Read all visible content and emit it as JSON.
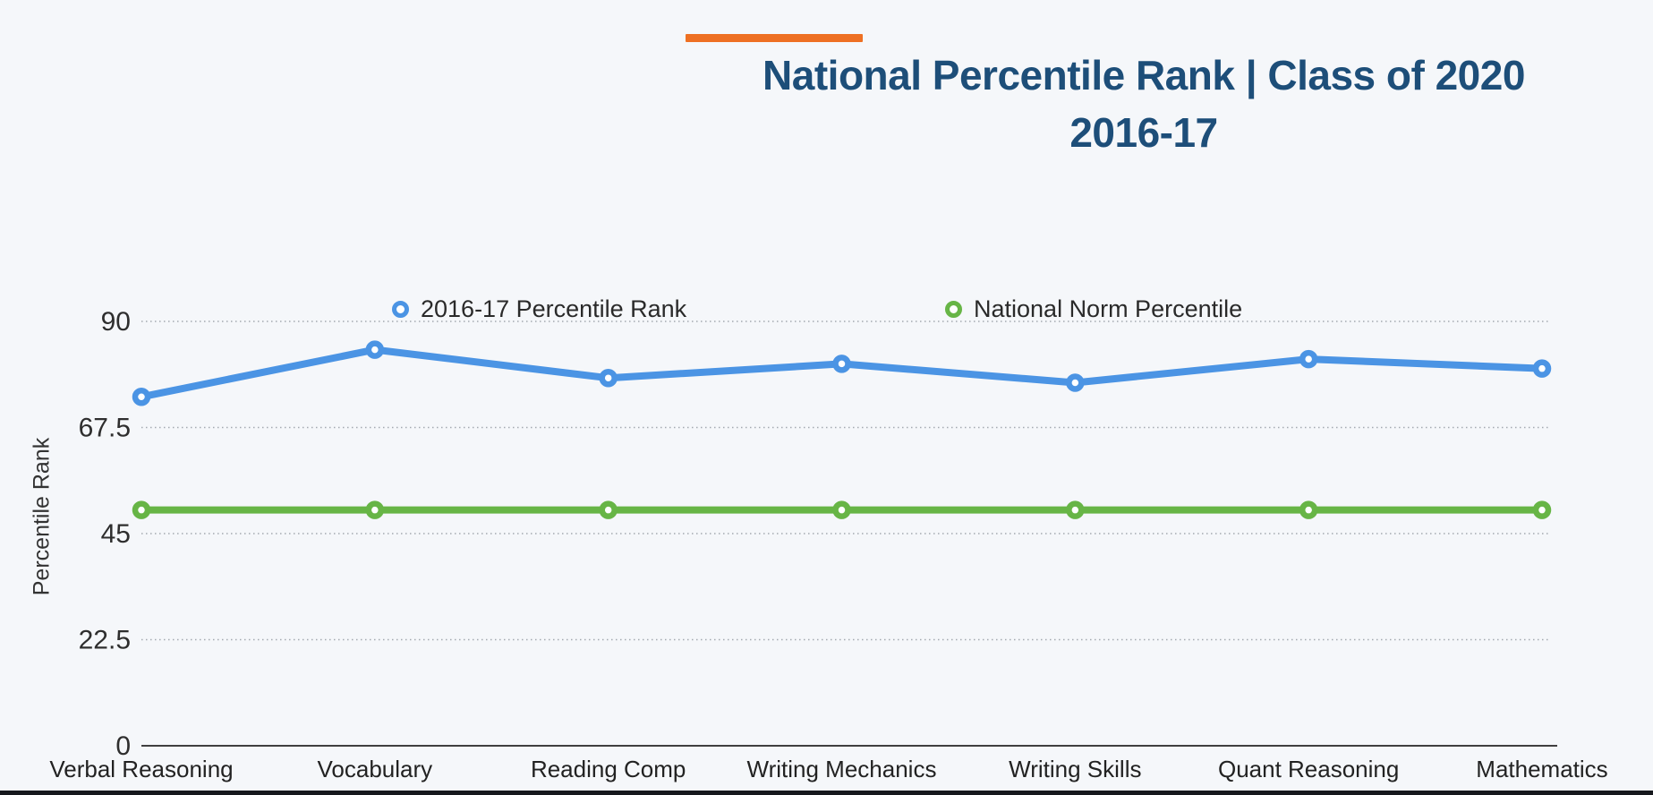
{
  "page": {
    "background_color": "#f5f7fa",
    "bottom_bar_color": "#16181d"
  },
  "header": {
    "accent_color": "#ee7023",
    "title_line1": "National Percentile Rank | Class of 2020",
    "title_line2": "2016-17",
    "title_color": "#1d4e79"
  },
  "chart_data": {
    "type": "line",
    "title": "National Percentile Rank | Class of 2020 2016-17",
    "categories": [
      "Verbal Reasoning",
      "Vocabulary",
      "Reading Comp",
      "Writing Mechanics",
      "Writing Skills",
      "Quant Reasoning",
      "Mathematics"
    ],
    "series": [
      {
        "name": "2016-17 Percentile Rank",
        "color": "#4b94e4",
        "marker": "open-circle",
        "values": [
          74,
          84,
          78,
          81,
          77,
          82,
          80
        ]
      },
      {
        "name": "National Norm Percentile",
        "color": "#67b546",
        "marker": "open-circle",
        "values": [
          50,
          50,
          50,
          50,
          50,
          50,
          50
        ]
      }
    ],
    "xlabel": "",
    "ylabel": "Percentile Rank",
    "ylim": [
      0,
      90
    ],
    "yticks": [
      0,
      22.5,
      45,
      67.5,
      90
    ],
    "grid": "horizontal-dotted",
    "legend_position": "top"
  }
}
